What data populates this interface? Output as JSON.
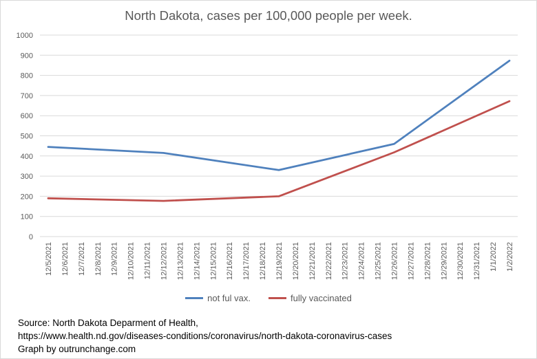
{
  "chart_data": {
    "type": "line",
    "title": "North Dakota, cases per 100,000 people per week.",
    "x": [
      "12/5/2021",
      "12/6/2021",
      "12/7/2021",
      "12/8/2021",
      "12/9/2021",
      "12/10/2021",
      "12/11/2021",
      "12/12/2021",
      "12/13/2021",
      "12/14/2021",
      "12/15/2021",
      "12/16/2021",
      "12/17/2021",
      "12/18/2021",
      "12/19/2021",
      "12/20/2021",
      "12/21/2021",
      "12/22/2021",
      "12/23/2021",
      "12/24/2021",
      "12/25/2021",
      "12/26/2021",
      "12/27/2021",
      "12/28/2021",
      "12/29/2021",
      "12/30/2021",
      "12/31/2021",
      "1/1/2022",
      "1/2/2022"
    ],
    "series": [
      {
        "name": "not ful vax.",
        "color": "#4f81bd",
        "points": [
          {
            "x": "12/5/2021",
            "y": 445
          },
          {
            "x": "12/12/2021",
            "y": 415
          },
          {
            "x": "12/19/2021",
            "y": 330
          },
          {
            "x": "12/26/2021",
            "y": 460
          },
          {
            "x": "1/2/2022",
            "y": 873
          }
        ]
      },
      {
        "name": "fully vaccinated",
        "color": "#c0504d",
        "points": [
          {
            "x": "12/5/2021",
            "y": 190
          },
          {
            "x": "12/12/2021",
            "y": 177
          },
          {
            "x": "12/19/2021",
            "y": 200
          },
          {
            "x": "12/26/2021",
            "y": 418
          },
          {
            "x": "1/2/2022",
            "y": 672
          }
        ]
      }
    ],
    "ylim": [
      0,
      1000
    ],
    "yticks": [
      0,
      100,
      200,
      300,
      400,
      500,
      600,
      700,
      800,
      900,
      1000
    ],
    "grid": true,
    "legend_position": "bottom"
  },
  "source": {
    "line1": "Source: North Dakota Deparment of Health,",
    "line2": "https://www.health.nd.gov/diseases-conditions/coronavirus/north-dakota-coronavirus-cases",
    "line3": "Graph by outrunchange.com"
  }
}
